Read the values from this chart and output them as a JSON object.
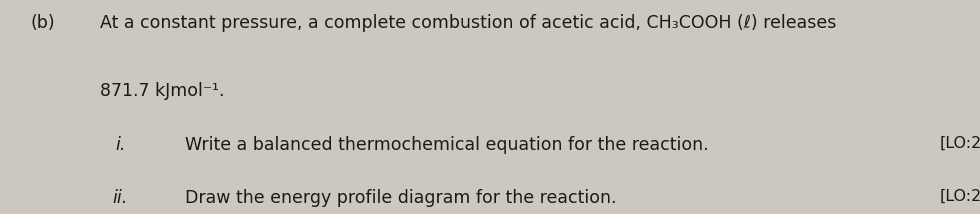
{
  "bg_color": "#ccc8c0",
  "label_b": "(b)",
  "line1": "At a constant pressure, a complete combustion of acetic acid, CH₃COOH (ℓ) releases",
  "line2": "871.7 kJmol⁻¹.",
  "item_i_num": "i.",
  "item_i_text": "Write a balanced thermochemical equation for the reaction.",
  "item_i_lo": "[LO:2",
  "item_ii_num": "ii.",
  "item_ii_text": "Draw the energy profile diagram for the reaction.",
  "item_ii_lo": "[LO:2",
  "font_size_main": 12.5,
  "font_size_lo": 11.5,
  "text_color": "#1a1a1a",
  "fig_width": 9.8,
  "fig_height": 2.14,
  "dpi": 100
}
